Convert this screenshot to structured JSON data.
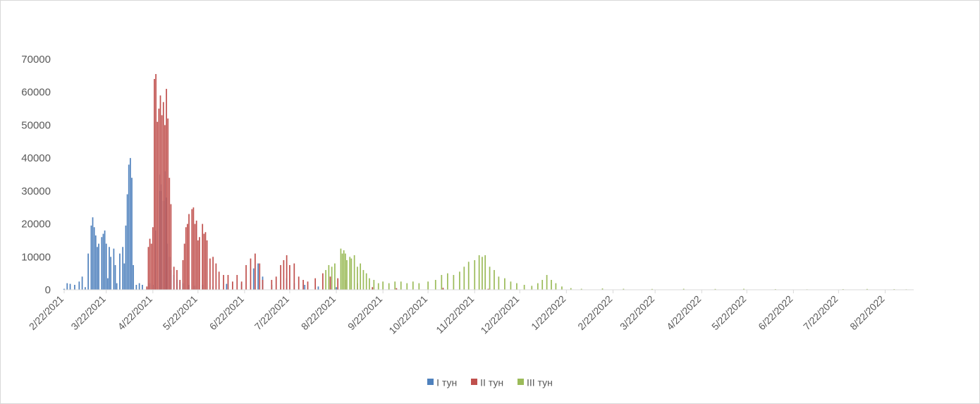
{
  "chart_data": {
    "type": "bar",
    "title": "",
    "xlabel": "",
    "ylabel": "",
    "ylim": [
      0,
      70000
    ],
    "yticks": [
      0,
      10000,
      20000,
      30000,
      40000,
      50000,
      60000,
      70000
    ],
    "ytick_labels": [
      "0",
      "10000",
      "20000",
      "30000",
      "40000",
      "50000",
      "60000",
      "70000"
    ],
    "x_start": "2/22/2021",
    "x_end": "9/10/2022",
    "xtick_labels": [
      "2/22/2021",
      "3/22/2021",
      "4/22/2021",
      "5/22/2021",
      "6/22/2021",
      "7/22/2021",
      "8/22/2021",
      "9/22/2021",
      "10/22/2021",
      "11/22/2021",
      "12/22/2021",
      "1/22/2022",
      "2/22/2022",
      "3/22/2022",
      "4/22/2022",
      "5/22/2022",
      "6/22/2022",
      "7/22/2022",
      "8/22/2022"
    ],
    "grid": false,
    "legend_position": "bottom",
    "series": [
      {
        "name": "I тун",
        "color": "#4f81bd",
        "values": [
          [
            "2/22/2021",
            300
          ],
          [
            "2/24/2021",
            2000
          ],
          [
            "2/26/2021",
            1800
          ],
          [
            "3/1/2021",
            1500
          ],
          [
            "3/4/2021",
            2500
          ],
          [
            "3/6/2021",
            4000
          ],
          [
            "3/8/2021",
            800
          ],
          [
            "3/10/2021",
            11000
          ],
          [
            "3/12/2021",
            19500
          ],
          [
            "3/13/2021",
            22000
          ],
          [
            "3/14/2021",
            19000
          ],
          [
            "3/15/2021",
            16500
          ],
          [
            "3/16/2021",
            13000
          ],
          [
            "3/17/2021",
            14000
          ],
          [
            "3/19/2021",
            16000
          ],
          [
            "3/20/2021",
            17000
          ],
          [
            "3/21/2021",
            18000
          ],
          [
            "3/22/2021",
            14000
          ],
          [
            "3/23/2021",
            3500
          ],
          [
            "3/24/2021",
            13000
          ],
          [
            "3/25/2021",
            10000
          ],
          [
            "3/27/2021",
            12500
          ],
          [
            "3/28/2021",
            7500
          ],
          [
            "3/29/2021",
            2000
          ],
          [
            "3/31/2021",
            11000
          ],
          [
            "4/2/2021",
            13000
          ],
          [
            "4/3/2021",
            8000
          ],
          [
            "4/4/2021",
            19500
          ],
          [
            "4/5/2021",
            29000
          ],
          [
            "4/6/2021",
            38000
          ],
          [
            "4/7/2021",
            40000
          ],
          [
            "4/8/2021",
            34000
          ],
          [
            "4/9/2021",
            7500
          ],
          [
            "4/11/2021",
            1500
          ],
          [
            "4/13/2021",
            2000
          ],
          [
            "4/15/2021",
            1500
          ],
          [
            "4/18/2021",
            500
          ],
          [
            "4/20/2021",
            2000
          ],
          [
            "4/22/2021",
            1500
          ],
          [
            "4/24/2021",
            18000
          ],
          [
            "4/26/2021",
            35000
          ],
          [
            "4/27/2021",
            30000
          ],
          [
            "4/28/2021",
            32000
          ],
          [
            "4/29/2021",
            27000
          ],
          [
            "4/30/2021",
            36000
          ],
          [
            "5/1/2021",
            28000
          ],
          [
            "5/2/2021",
            14000
          ],
          [
            "5/3/2021",
            10000
          ],
          [
            "5/4/2021",
            6000
          ],
          [
            "5/6/2021",
            4500
          ],
          [
            "5/8/2021",
            3000
          ],
          [
            "5/10/2021",
            2500
          ],
          [
            "5/12/2021",
            2000
          ],
          [
            "5/16/2021",
            1500
          ],
          [
            "5/20/2021",
            1200
          ],
          [
            "5/25/2021",
            1500
          ],
          [
            "6/1/2021",
            1000
          ],
          [
            "6/10/2021",
            1800
          ],
          [
            "6/20/2021",
            2000
          ],
          [
            "6/28/2021",
            6500
          ],
          [
            "7/1/2021",
            8000
          ],
          [
            "7/4/2021",
            4000
          ],
          [
            "7/10/2021",
            1500
          ],
          [
            "7/20/2021",
            3500
          ],
          [
            "7/25/2021",
            2000
          ],
          [
            "8/1/2021",
            1500
          ],
          [
            "8/10/2021",
            1000
          ],
          [
            "8/22/2021",
            800
          ],
          [
            "9/5/2021",
            500
          ],
          [
            "10/1/2021",
            300
          ],
          [
            "11/1/2021",
            200
          ],
          [
            "12/1/2021",
            100
          ]
        ]
      },
      {
        "name": "II тун",
        "color": "#c0504d",
        "values": [
          [
            "4/18/2021",
            1000
          ],
          [
            "4/19/2021",
            13000
          ],
          [
            "4/20/2021",
            15500
          ],
          [
            "4/21/2021",
            14000
          ],
          [
            "4/22/2021",
            19000
          ],
          [
            "4/23/2021",
            64000
          ],
          [
            "4/24/2021",
            65500
          ],
          [
            "4/25/2021",
            51000
          ],
          [
            "4/26/2021",
            55000
          ],
          [
            "4/27/2021",
            59000
          ],
          [
            "4/28/2021",
            53000
          ],
          [
            "4/29/2021",
            57000
          ],
          [
            "4/30/2021",
            50000
          ],
          [
            "5/1/2021",
            61000
          ],
          [
            "5/2/2021",
            52000
          ],
          [
            "5/3/2021",
            34000
          ],
          [
            "5/4/2021",
            26000
          ],
          [
            "5/6/2021",
            7000
          ],
          [
            "5/8/2021",
            6000
          ],
          [
            "5/10/2021",
            3000
          ],
          [
            "5/12/2021",
            9000
          ],
          [
            "5/13/2021",
            14000
          ],
          [
            "5/14/2021",
            19000
          ],
          [
            "5/15/2021",
            20000
          ],
          [
            "5/16/2021",
            23000
          ],
          [
            "5/18/2021",
            24500
          ],
          [
            "5/19/2021",
            25000
          ],
          [
            "5/20/2021",
            20000
          ],
          [
            "5/21/2021",
            21000
          ],
          [
            "5/22/2021",
            15000
          ],
          [
            "5/23/2021",
            16000
          ],
          [
            "5/25/2021",
            20000
          ],
          [
            "5/26/2021",
            17000
          ],
          [
            "5/27/2021",
            17500
          ],
          [
            "5/28/2021",
            15000
          ],
          [
            "5/30/2021",
            9500
          ],
          [
            "6/1/2021",
            10000
          ],
          [
            "6/3/2021",
            8000
          ],
          [
            "6/5/2021",
            5500
          ],
          [
            "6/8/2021",
            4500
          ],
          [
            "6/11/2021",
            4500
          ],
          [
            "6/14/2021",
            2500
          ],
          [
            "6/17/2021",
            4500
          ],
          [
            "6/20/2021",
            2500
          ],
          [
            "6/23/2021",
            7500
          ],
          [
            "6/26/2021",
            9500
          ],
          [
            "6/29/2021",
            11000
          ],
          [
            "7/2/2021",
            8000
          ],
          [
            "7/4/2021",
            3000
          ],
          [
            "7/10/2021",
            3000
          ],
          [
            "7/13/2021",
            4000
          ],
          [
            "7/16/2021",
            7500
          ],
          [
            "7/18/2021",
            9000
          ],
          [
            "7/20/2021",
            10500
          ],
          [
            "7/22/2021",
            7500
          ],
          [
            "7/25/2021",
            8000
          ],
          [
            "7/28/2021",
            4000
          ],
          [
            "7/31/2021",
            3000
          ],
          [
            "8/3/2021",
            2500
          ],
          [
            "8/8/2021",
            3500
          ],
          [
            "8/13/2021",
            5000
          ],
          [
            "8/18/2021",
            4000
          ],
          [
            "8/23/2021",
            3500
          ],
          [
            "8/28/2021",
            3000
          ],
          [
            "9/5/2021",
            2000
          ],
          [
            "9/15/2021",
            800
          ],
          [
            "10/1/2021",
            500
          ],
          [
            "11/1/2021",
            600
          ],
          [
            "12/1/2021",
            300
          ]
        ]
      },
      {
        "name": "III тун",
        "color": "#9bbb59",
        "values": [
          [
            "8/15/2021",
            6000
          ],
          [
            "8/17/2021",
            7500
          ],
          [
            "8/19/2021",
            7000
          ],
          [
            "8/21/2021",
            8000
          ],
          [
            "8/25/2021",
            12500
          ],
          [
            "8/26/2021",
            11000
          ],
          [
            "8/27/2021",
            12000
          ],
          [
            "8/28/2021",
            11000
          ],
          [
            "8/29/2021",
            9000
          ],
          [
            "8/31/2021",
            10000
          ],
          [
            "9/1/2021",
            9500
          ],
          [
            "9/3/2021",
            10500
          ],
          [
            "9/5/2021",
            7000
          ],
          [
            "9/7/2021",
            8000
          ],
          [
            "9/9/2021",
            6000
          ],
          [
            "9/11/2021",
            5000
          ],
          [
            "9/13/2021",
            3500
          ],
          [
            "9/16/2021",
            3000
          ],
          [
            "9/19/2021",
            2000
          ],
          [
            "9/22/2021",
            2500
          ],
          [
            "9/26/2021",
            2000
          ],
          [
            "9/30/2021",
            2500
          ],
          [
            "10/4/2021",
            2500
          ],
          [
            "10/8/2021",
            2000
          ],
          [
            "10/12/2021",
            2500
          ],
          [
            "10/16/2021",
            2000
          ],
          [
            "10/22/2021",
            2500
          ],
          [
            "10/27/2021",
            3000
          ],
          [
            "10/31/2021",
            4500
          ],
          [
            "11/4/2021",
            5000
          ],
          [
            "11/8/2021",
            4500
          ],
          [
            "11/12/2021",
            5500
          ],
          [
            "11/15/2021",
            7000
          ],
          [
            "11/18/2021",
            8500
          ],
          [
            "11/22/2021",
            9000
          ],
          [
            "11/25/2021",
            10500
          ],
          [
            "11/27/2021",
            10000
          ],
          [
            "11/29/2021",
            10500
          ],
          [
            "12/2/2021",
            7000
          ],
          [
            "12/5/2021",
            6000
          ],
          [
            "12/8/2021",
            4000
          ],
          [
            "12/12/2021",
            3500
          ],
          [
            "12/16/2021",
            2500
          ],
          [
            "12/20/2021",
            2000
          ],
          [
            "12/25/2021",
            1500
          ],
          [
            "12/30/2021",
            1200
          ],
          [
            "1/3/2022",
            2000
          ],
          [
            "1/6/2022",
            3000
          ],
          [
            "1/9/2022",
            4500
          ],
          [
            "1/12/2022",
            3000
          ],
          [
            "1/15/2022",
            2000
          ],
          [
            "1/19/2022",
            1000
          ],
          [
            "1/25/2022",
            500
          ],
          [
            "2/1/2022",
            300
          ],
          [
            "2/15/2022",
            400
          ],
          [
            "3/1/2022",
            300
          ],
          [
            "3/20/2022",
            250
          ],
          [
            "4/10/2022",
            300
          ],
          [
            "5/1/2022",
            250
          ],
          [
            "5/20/2022",
            300
          ],
          [
            "6/10/2022",
            200
          ],
          [
            "7/1/2022",
            150
          ],
          [
            "7/25/2022",
            200
          ],
          [
            "8/10/2022",
            250
          ],
          [
            "8/28/2022",
            200
          ],
          [
            "9/5/2022",
            150
          ]
        ]
      }
    ]
  }
}
